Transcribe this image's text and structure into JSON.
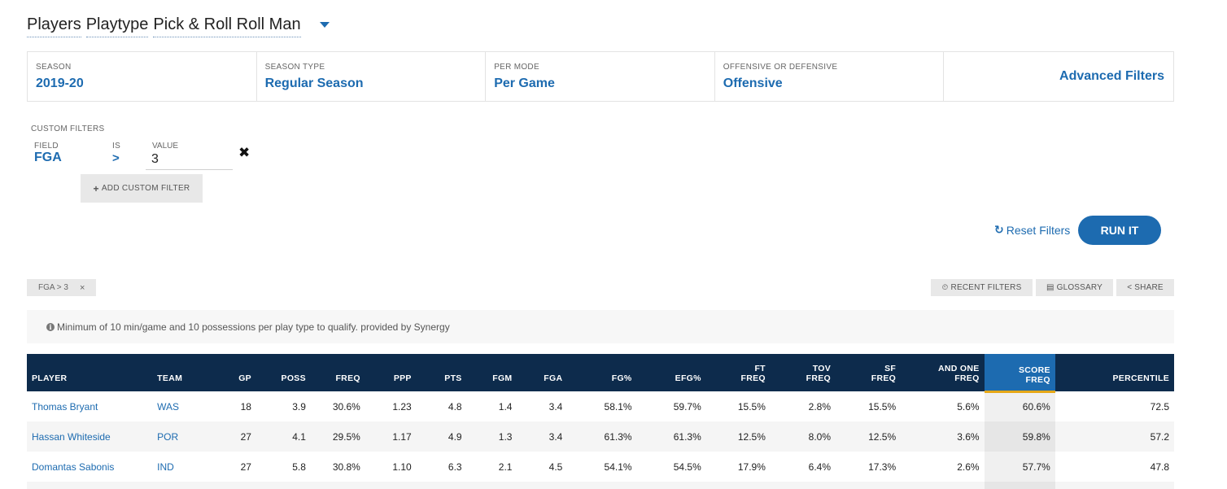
{
  "title": {
    "segments": [
      "Players",
      "Playtype",
      "Pick & Roll Roll Man"
    ]
  },
  "filters": [
    {
      "label": "SEASON",
      "value": "2019-20"
    },
    {
      "label": "SEASON TYPE",
      "value": "Regular Season"
    },
    {
      "label": "PER MODE",
      "value": "Per Game"
    },
    {
      "label": "OFFENSIVE OR DEFENSIVE",
      "value": "Offensive"
    }
  ],
  "advanced_filters_label": "Advanced Filters",
  "custom_filters": {
    "title": "CUSTOM FILTERS",
    "field_label": "FIELD",
    "field_value": "FGA",
    "is_label": "IS",
    "is_value": ">",
    "value_label": "VALUE",
    "value": "3",
    "remove_icon": "✖",
    "add_label": "ADD CUSTOM FILTER",
    "add_icon": "+"
  },
  "actions": {
    "reset_label": "Reset Filters",
    "reset_icon": "↻",
    "run_label": "RUN IT"
  },
  "active_tag": {
    "label": "FGA > 3",
    "remove": "×"
  },
  "tools": [
    {
      "icon": "⏲",
      "label": "RECENT FILTERS"
    },
    {
      "icon": "▤",
      "label": "GLOSSARY"
    },
    {
      "icon": "<",
      "label": "SHARE"
    }
  ],
  "notice": "Minimum of 10 min/game and 10 possessions per play type to qualify. provided by Synergy",
  "table": {
    "headers": [
      [
        "PLAYER"
      ],
      [
        "TEAM"
      ],
      [
        "GP"
      ],
      [
        "POSS"
      ],
      [
        "FREQ"
      ],
      [
        "PPP"
      ],
      [
        "PTS"
      ],
      [
        "FGM"
      ],
      [
        "FGA"
      ],
      [
        "FG%"
      ],
      [
        "EFG%"
      ],
      [
        "FT",
        "FREQ"
      ],
      [
        "TOV",
        "FREQ"
      ],
      [
        "SF",
        "FREQ"
      ],
      [
        "AND ONE",
        "FREQ"
      ],
      [
        "SCORE",
        "FREQ"
      ],
      [
        "PERCENTILE"
      ]
    ],
    "rows": [
      [
        "Thomas Bryant",
        "WAS",
        "18",
        "3.9",
        "30.6%",
        "1.23",
        "4.8",
        "1.4",
        "3.4",
        "58.1%",
        "59.7%",
        "15.5%",
        "2.8%",
        "15.5%",
        "5.6%",
        "60.6%",
        "72.5"
      ],
      [
        "Hassan Whiteside",
        "POR",
        "27",
        "4.1",
        "29.5%",
        "1.17",
        "4.9",
        "1.3",
        "3.4",
        "61.3%",
        "61.3%",
        "12.5%",
        "8.0%",
        "12.5%",
        "3.6%",
        "59.8%",
        "57.2"
      ],
      [
        "Domantas Sabonis",
        "IND",
        "27",
        "5.8",
        "30.8%",
        "1.10",
        "6.3",
        "2.1",
        "4.5",
        "54.1%",
        "54.5%",
        "17.9%",
        "6.4%",
        "17.3%",
        "2.6%",
        "57.7%",
        "47.8"
      ]
    ]
  },
  "colors": {
    "accent": "#1d6bb0",
    "header_bg": "#0d2b4c",
    "sort_underline": "#e6a817"
  }
}
